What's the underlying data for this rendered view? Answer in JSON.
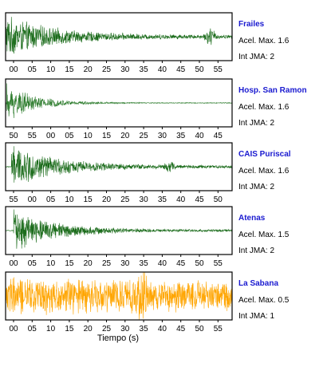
{
  "chart_data": {
    "type": "line",
    "xlabel": "Tiempo (s)",
    "ylabel": "",
    "grid": false,
    "panels": [
      {
        "station": "Frailes",
        "accel_label": "Acel. Max. 1.6",
        "jma_label": "Int JMA: 2",
        "color": "#1a6b1a",
        "tick_labels": [
          "00",
          "05",
          "10",
          "15",
          "20",
          "25",
          "30",
          "35",
          "40",
          "45",
          "50",
          "55"
        ],
        "envelope": {
          "onset": 0.0,
          "peak": 1.0,
          "decay": 0.05,
          "floor": 0.08,
          "bursts": [
            [
              52.5,
              0.35
            ]
          ]
        },
        "axis_note": "relative time (s), 0-58"
      },
      {
        "station": "Hosp. San Ramon",
        "accel_label": "Acel. Max. 1.6",
        "jma_label": "Int JMA: 2",
        "color": "#2e7d2e",
        "tick_labels": [
          "50",
          "55",
          "00",
          "05",
          "10",
          "15",
          "20",
          "25",
          "30",
          "35",
          "40",
          "45"
        ],
        "envelope": {
          "onset": 0.2,
          "peak": 0.95,
          "decay": 0.09,
          "floor": 0.02,
          "bursts": []
        },
        "axis_note": "relative time (s), 0-58"
      },
      {
        "station": "CAIS Puriscal",
        "accel_label": "Acel. Max. 1.6",
        "jma_label": "Int JMA: 2",
        "color": "#1a6b1a",
        "tick_labels": [
          "55",
          "00",
          "05",
          "10",
          "15",
          "20",
          "25",
          "30",
          "35",
          "40",
          "45",
          "50"
        ],
        "envelope": {
          "onset": 1.5,
          "peak": 1.0,
          "decay": 0.055,
          "floor": 0.07,
          "bursts": [
            [
              42.0,
              0.18
            ]
          ]
        },
        "axis_note": "relative time (s), 0-58"
      },
      {
        "station": "Atenas",
        "accel_label": "Acel. Max. 1.5",
        "jma_label": "Int JMA: 2",
        "color": "#1a6b1a",
        "tick_labels": [
          "00",
          "05",
          "10",
          "15",
          "20",
          "25",
          "30",
          "35",
          "40",
          "45",
          "50",
          "55"
        ],
        "envelope": {
          "onset": 2.0,
          "peak": 1.0,
          "decay": 0.06,
          "floor": 0.05,
          "bursts": []
        },
        "axis_note": "relative time (s), 0-58"
      },
      {
        "station": "La Sabana",
        "accel_label": "Acel. Max. 0.5",
        "jma_label": "Int JMA: 1",
        "color": "#ffa500",
        "tick_labels": [
          "00",
          "05",
          "10",
          "15",
          "20",
          "25",
          "30",
          "35",
          "40",
          "45",
          "50",
          "55"
        ],
        "envelope": {
          "onset": 0.0,
          "peak": 0.9,
          "decay": 0.008,
          "floor": 0.55,
          "bursts": [
            [
              35.0,
              0.6
            ]
          ]
        },
        "axis_note": "relative time (s), 0-58"
      }
    ]
  }
}
